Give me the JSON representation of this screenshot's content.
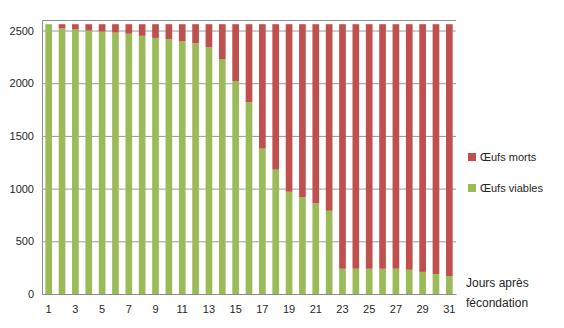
{
  "chart_data": {
    "type": "bar",
    "stacked": true,
    "grid": true,
    "legend": "right",
    "x_label": "Jours après fécondation",
    "categories": [
      "1",
      null,
      "3",
      null,
      "5",
      null,
      "7",
      null,
      "9",
      null,
      "11",
      null,
      "13",
      null,
      "15",
      null,
      "17",
      null,
      "19",
      null,
      "21",
      null,
      "23",
      null,
      "25",
      null,
      "27",
      null,
      "29",
      null,
      "31"
    ],
    "series": [
      {
        "name": "Œufs viables",
        "color": "#9bbb59",
        "values": [
          2560,
          2520,
          2510,
          2500,
          2490,
          2480,
          2470,
          2450,
          2430,
          2420,
          2400,
          2380,
          2340,
          2230,
          2020,
          1820,
          1380,
          1180,
          970,
          920,
          860,
          790,
          240,
          240,
          240,
          240,
          240,
          230,
          210,
          190,
          170
        ]
      },
      {
        "name": "Œufs morts",
        "color": "#c0504d",
        "values": [
          0,
          40,
          50,
          60,
          70,
          80,
          90,
          110,
          130,
          140,
          160,
          180,
          220,
          330,
          540,
          740,
          1180,
          1380,
          1590,
          1640,
          1700,
          1770,
          2320,
          2320,
          2320,
          2320,
          2320,
          2330,
          2350,
          2370,
          2390
        ]
      }
    ],
    "ylim": [
      0,
      2600
    ],
    "yticks": [
      0,
      500,
      1000,
      1500,
      2000,
      2500
    ]
  }
}
